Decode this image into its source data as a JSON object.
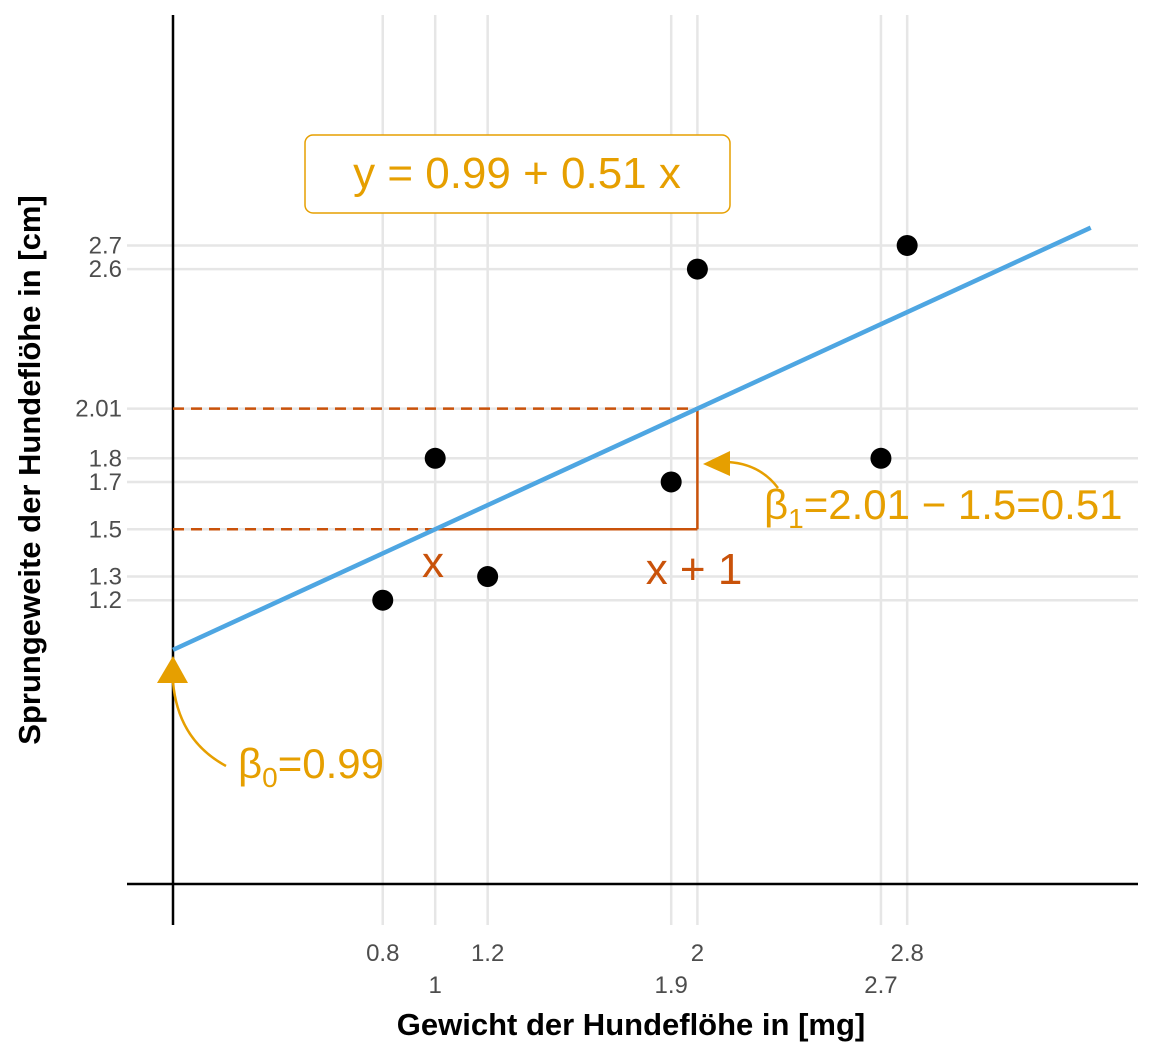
{
  "chart_data": {
    "type": "scatter",
    "title": "",
    "xlabel": "Gewicht der Hundeflöhe in [mg]",
    "ylabel": "Sprungeweite der Hundeflöhe in [cm]",
    "xlim": [
      -0.17,
      3.67
    ],
    "ylim": [
      -0.17,
      3.36
    ],
    "x_ticks": [
      {
        "value": 0.8,
        "label": "0.8",
        "row": 1
      },
      {
        "value": 1.0,
        "label": "1",
        "row": 2
      },
      {
        "value": 1.2,
        "label": "1.2",
        "row": 1
      },
      {
        "value": 1.9,
        "label": "1.9",
        "row": 2
      },
      {
        "value": 2.0,
        "label": "2",
        "row": 1
      },
      {
        "value": 2.7,
        "label": "2.7",
        "row": 2
      },
      {
        "value": 2.8,
        "label": "2.8",
        "row": 1
      }
    ],
    "y_ticks": [
      {
        "value": 1.2,
        "label": "1.2"
      },
      {
        "value": 1.3,
        "label": "1.3"
      },
      {
        "value": 1.5,
        "label": "1.5"
      },
      {
        "value": 1.7,
        "label": "1.7"
      },
      {
        "value": 1.8,
        "label": "1.8"
      },
      {
        "value": 2.01,
        "label": "2.01"
      },
      {
        "value": 2.6,
        "label": "2.6"
      },
      {
        "value": 2.7,
        "label": "2.7"
      }
    ],
    "points": [
      {
        "x": 0.8,
        "y": 1.2
      },
      {
        "x": 1.0,
        "y": 1.8
      },
      {
        "x": 1.2,
        "y": 1.3
      },
      {
        "x": 1.9,
        "y": 1.7
      },
      {
        "x": 2.0,
        "y": 2.6
      },
      {
        "x": 2.7,
        "y": 1.8
      },
      {
        "x": 2.8,
        "y": 2.7
      }
    ],
    "regression": {
      "intercept": 0.99,
      "slope": 0.51,
      "x_start": 0,
      "x_end": 3.5,
      "color": "#4ea6e2"
    },
    "equation_label": "y = 0.99 + 0.51 x",
    "beta0": {
      "symbol": "β",
      "sub": "0",
      "text": "=0.99",
      "x": 0,
      "y": 0.99
    },
    "beta1": {
      "symbol": "β",
      "sub": "1",
      "text": "=2.01 − 1.5=0.51"
    },
    "step": {
      "x0": 1.0,
      "x1": 2.0,
      "y0": 1.5,
      "y1": 2.01,
      "label_x": "x",
      "label_x1": "x + 1",
      "color": "#c9520a"
    },
    "colors": {
      "points": "#000000",
      "annotation": "#e69f00",
      "grid": "#e6e6e6",
      "axis": "#000000"
    },
    "grid": true
  }
}
